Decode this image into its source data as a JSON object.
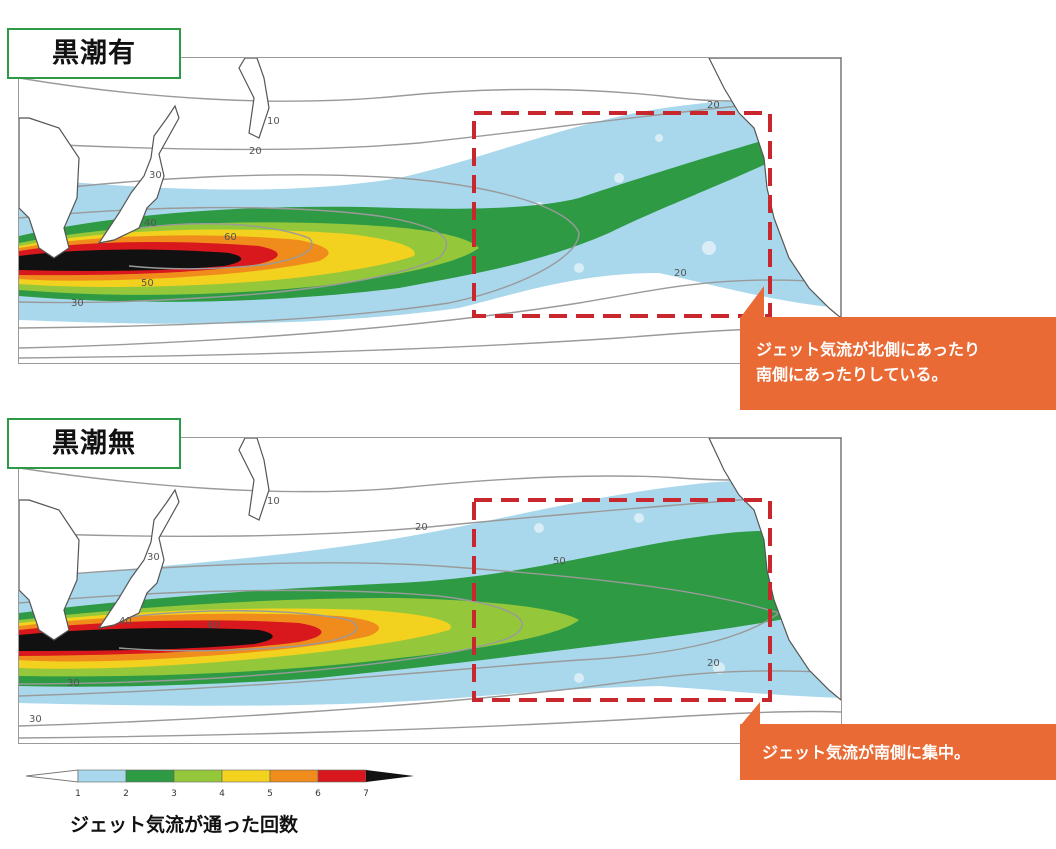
{
  "panels": [
    {
      "label": "黒潮有",
      "callout_lines": [
        "ジェット気流が北側にあったり",
        "南側にあったりしている。"
      ],
      "contour_labels": [
        "10",
        "20",
        "30",
        "40",
        "60",
        "20",
        "20",
        "50",
        "30"
      ]
    },
    {
      "label": "黒潮無",
      "callout_lines": [
        "ジェット気流が南側に集中。"
      ],
      "contour_labels": [
        "10",
        "20",
        "30",
        "40",
        "60",
        "50",
        "30",
        "20",
        "30"
      ]
    }
  ],
  "legend": {
    "title": "ジェット気流が通った回数",
    "ticks": [
      "1",
      "2",
      "3",
      "4",
      "5",
      "6",
      "7"
    ],
    "colors": [
      "#a9d8ec",
      "#2e9a44",
      "#94c83a",
      "#f2d11f",
      "#f08c1c",
      "#d8181c",
      "#111111"
    ]
  },
  "colors": {
    "label_border": "#2d9a47",
    "callout": "#ea6a35",
    "box_dash": "#c8272d",
    "contour": "#9a9a9a"
  }
}
